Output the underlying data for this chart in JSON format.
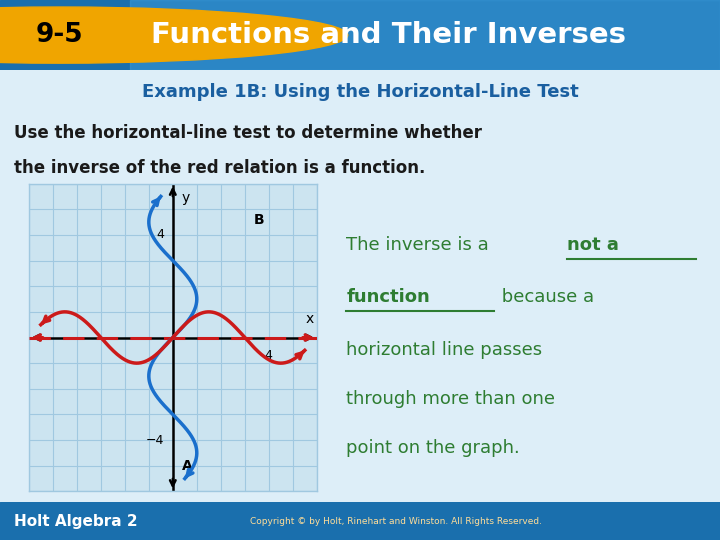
{
  "title_badge": "9-5",
  "title_text": "Functions and Their Inverses",
  "subtitle": "Example 1B: Using the Horizontal-Line Test",
  "body_text_line1": "Use the horizontal-line test to determine whether",
  "body_text_line2": "the inverse of the red relation is a function.",
  "header_bg": "#1a6fad",
  "header_bg_light": "#3a9ad9",
  "badge_color": "#f0a500",
  "subtitle_color": "#1a5fa0",
  "body_color": "#1a1a1a",
  "answer_color": "#2e7d32",
  "slide_bg": "#ddeef8",
  "plot_bg": "#cce4f0",
  "blue_curve_color": "#1a6fcc",
  "red_curve_color": "#cc1a1a",
  "dashed_line_color": "#cc1a1a",
  "grid_color": "#a0c8e0",
  "footer_bg": "#1a6fad",
  "footer_text": "Holt Algebra 2",
  "copyright_text": "Copyright © by Holt, Rinehart and Winston. All Rights Reserved."
}
